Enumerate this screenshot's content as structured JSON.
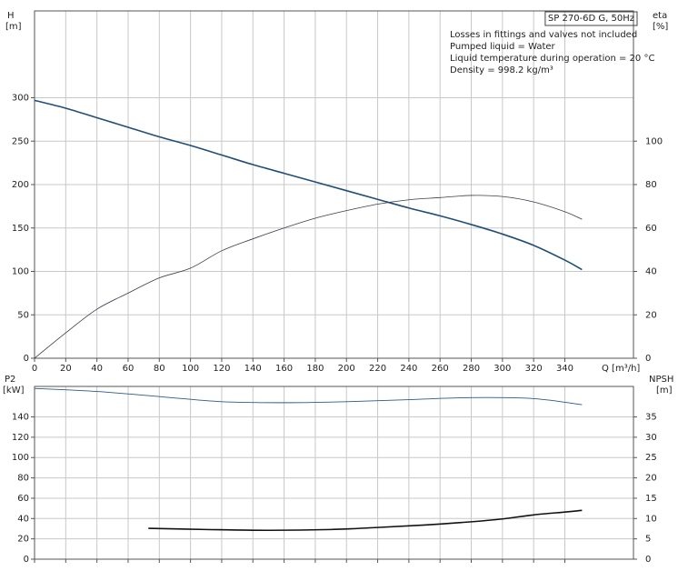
{
  "chart_data": [
    {
      "type": "line",
      "title": "SP 270-6D G, 50Hz",
      "annotations": [
        "Losses in fittings and valves not included",
        "Pumped liquid = Water",
        "Liquid temperature during operation = 20 °C",
        "Density = 998.2 kg/m³"
      ],
      "y_label": "H",
      "y_unit": "[m]",
      "y2_label": "eta",
      "y2_unit": "[%]",
      "x_label": "Q [m³/h]",
      "xlim": [
        0,
        384
      ],
      "xticks": [
        0,
        20,
        40,
        60,
        80,
        100,
        120,
        140,
        160,
        180,
        200,
        220,
        240,
        260,
        280,
        300,
        320,
        340
      ],
      "ylim": [
        0,
        400
      ],
      "yticks": [
        0,
        50,
        100,
        150,
        200,
        250,
        300
      ],
      "y2lim": [
        0,
        160
      ],
      "y2ticks": [
        0,
        20,
        40,
        60,
        80,
        100
      ],
      "grid": true,
      "series": [
        {
          "color": "#1f4e79",
          "width": 1.6,
          "x": [
            0,
            20,
            40,
            60,
            80,
            100,
            120,
            140,
            160,
            180,
            200,
            220,
            240,
            260,
            280,
            300,
            320,
            340,
            351
          ],
          "values": [
            297,
            288,
            277,
            266,
            255,
            245,
            234,
            223,
            213,
            203,
            193,
            183,
            173,
            164,
            154,
            143,
            130,
            113,
            102
          ]
        },
        {
          "color": "#3c3c50",
          "width": 0.8,
          "axis": "y2",
          "x": [
            0,
            20,
            40,
            60,
            80,
            100,
            120,
            140,
            160,
            180,
            200,
            220,
            240,
            260,
            280,
            300,
            320,
            340,
            351
          ],
          "values": [
            0,
            11.7,
            22.6,
            30,
            37,
            41.5,
            49.5,
            55,
            60,
            64.5,
            68,
            71,
            73,
            74,
            75,
            74.5,
            72,
            67.5,
            64
          ]
        }
      ]
    },
    {
      "type": "line",
      "y_label": "P2",
      "y_unit": "[kW]",
      "y2_label": "NPSH",
      "y2_unit": "[m]",
      "xlim": [
        0,
        384
      ],
      "ylim": [
        0,
        170
      ],
      "yticks": [
        0,
        20,
        40,
        60,
        80,
        100,
        120,
        140
      ],
      "y2lim": [
        0,
        42.5
      ],
      "y2ticks": [
        0,
        5,
        10,
        15,
        20,
        25,
        30,
        35
      ],
      "grid": true,
      "series": [
        {
          "color": "#2b5a8a",
          "width": 0.9,
          "x": [
            0,
            40,
            80,
            120,
            160,
            200,
            240,
            280,
            320,
            351
          ],
          "values": [
            168,
            165,
            160,
            155,
            154,
            155,
            157,
            159,
            158,
            152
          ]
        },
        {
          "color": "#111111",
          "width": 1.6,
          "axis": "y2",
          "x": [
            73,
            110,
            150,
            190,
            220,
            250,
            280,
            300,
            320,
            340,
            351
          ],
          "values": [
            7.6,
            7.3,
            7.1,
            7.3,
            7.8,
            8.4,
            9.2,
            9.9,
            10.9,
            11.6,
            12
          ]
        }
      ]
    }
  ]
}
